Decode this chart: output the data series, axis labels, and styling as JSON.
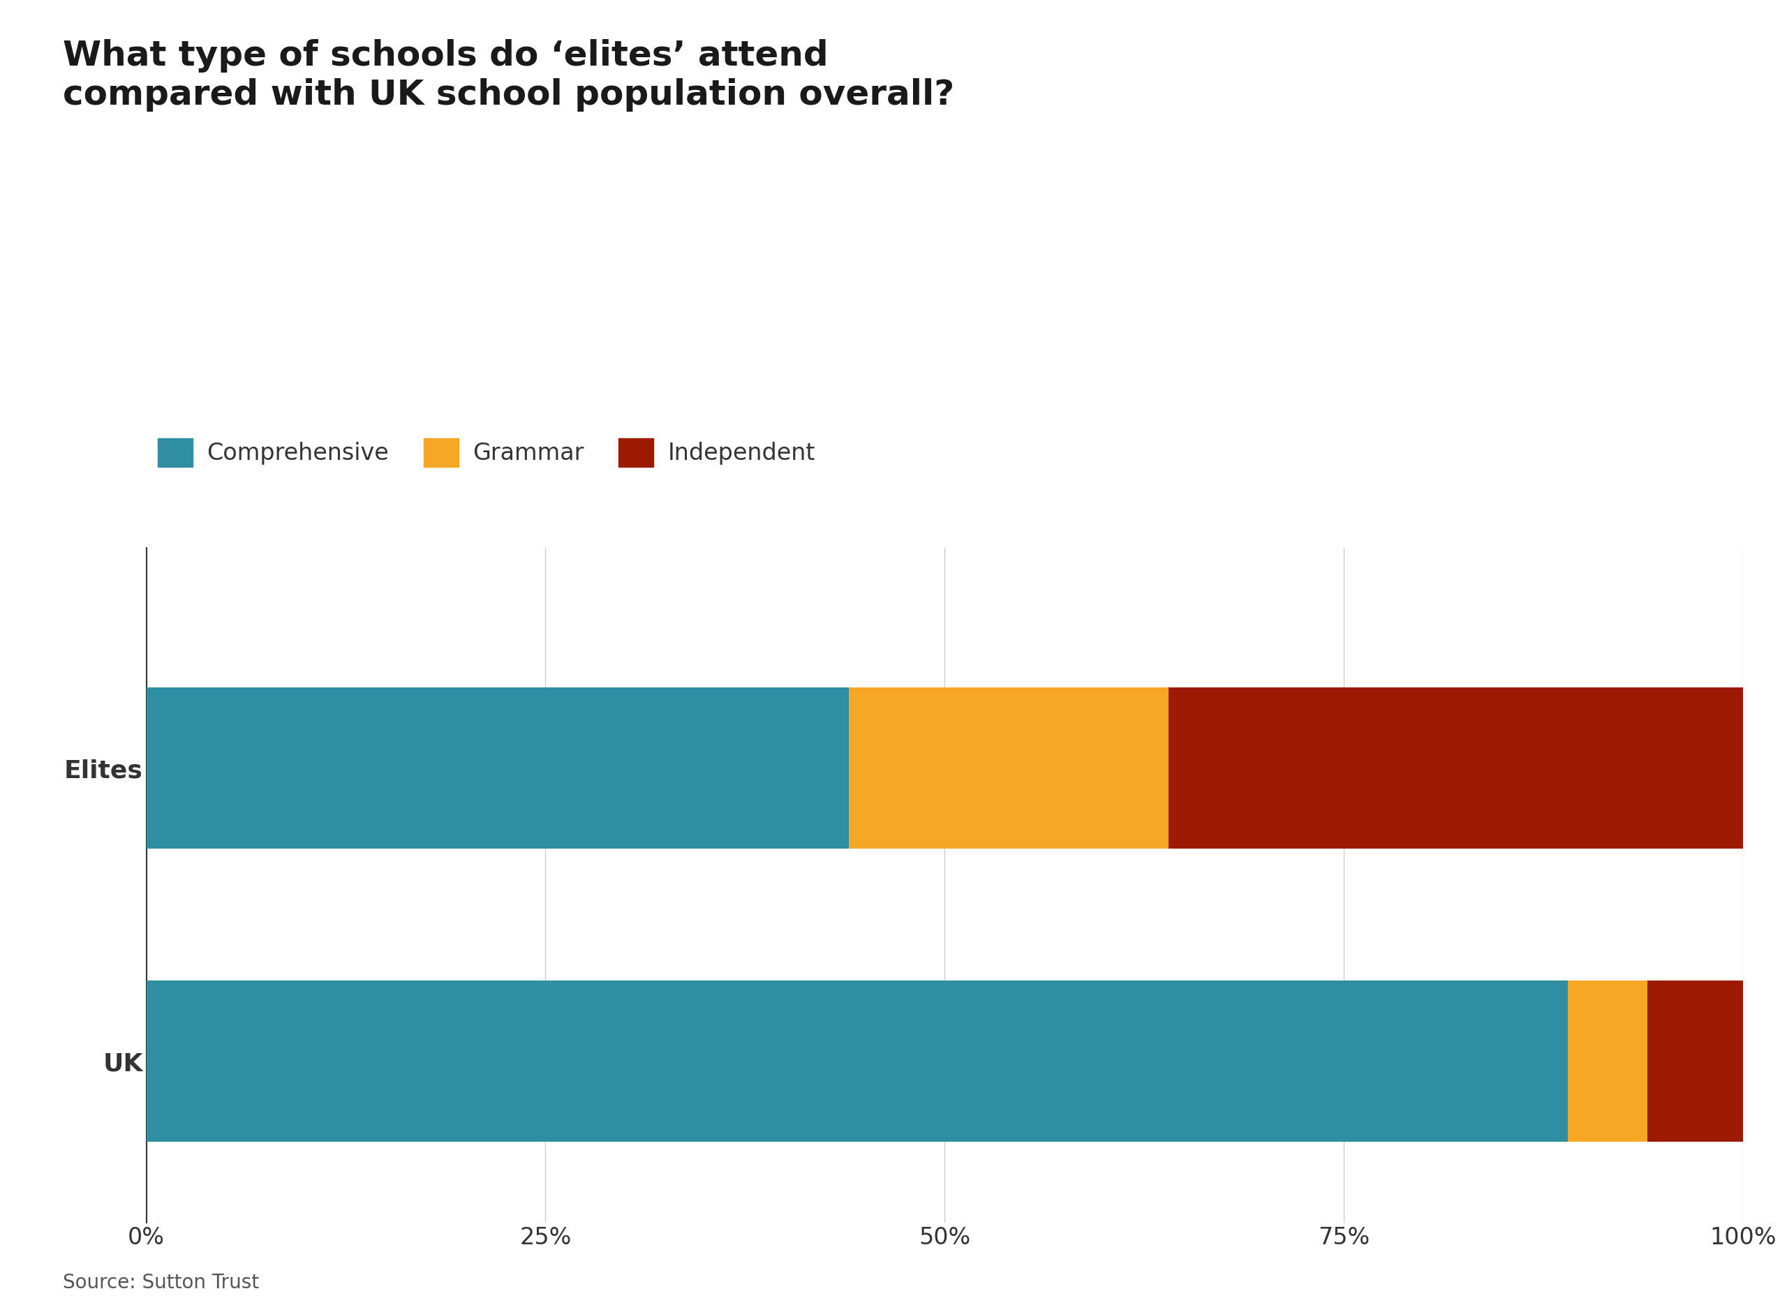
{
  "title": "What type of schools do ‘elites’ attend\ncompared with UK school population overall?",
  "categories": [
    "Elites",
    "UK"
  ],
  "comprehensive": [
    44,
    89
  ],
  "grammar": [
    20,
    5
  ],
  "independent": [
    36,
    6
  ],
  "colors": {
    "comprehensive": "#2e8fa3",
    "grammar": "#f5a623",
    "independent": "#9b1a00"
  },
  "legend_labels": [
    "Comprehensive",
    "Grammar",
    "Independent"
  ],
  "source_text": "Source: Sutton Trust",
  "xtick_labels": [
    "0%",
    "25%",
    "50%",
    "75%",
    "100%"
  ],
  "xtick_values": [
    0,
    25,
    50,
    75,
    100
  ],
  "background_color": "#ffffff",
  "title_fontsize": 36,
  "legend_fontsize": 24,
  "tick_fontsize": 24,
  "label_fontsize": 26,
  "source_fontsize": 20
}
